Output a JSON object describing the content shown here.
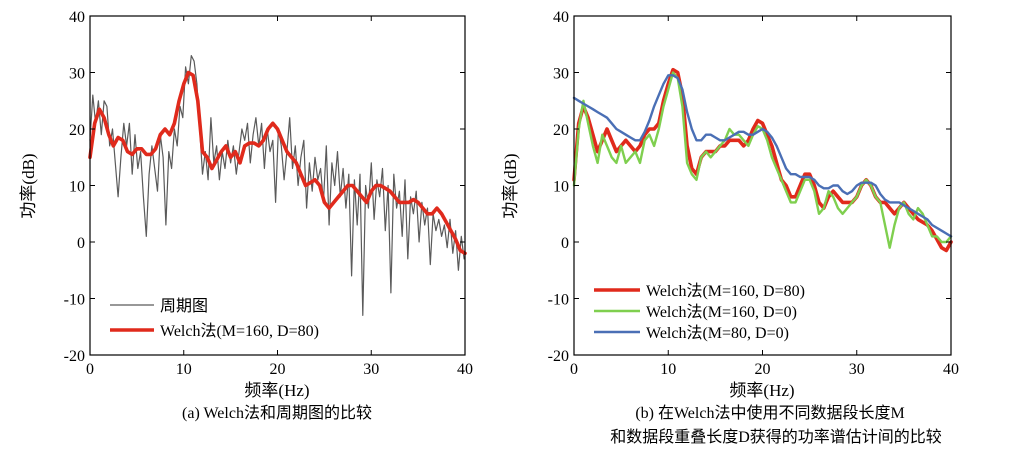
{
  "chart_data": [
    {
      "type": "line",
      "xlabel": "频率(Hz)",
      "ylabel": "功率(dB)",
      "xlim": [
        0,
        40
      ],
      "ylim": [
        -20,
        40
      ],
      "xticks": [
        0,
        10,
        20,
        30,
        40
      ],
      "yticks": [
        -20,
        -10,
        0,
        10,
        20,
        30,
        40
      ],
      "legend_position": "bottom-left",
      "caption": "(a) Welch法和周期图的比较",
      "series": [
        {
          "name": "周期图",
          "color": "#5a5a5a",
          "x": [
            0,
            0.3,
            0.6,
            0.9,
            1.2,
            1.5,
            1.8,
            2.1,
            2.4,
            2.7,
            3.0,
            3.3,
            3.6,
            3.9,
            4.2,
            4.5,
            4.8,
            5.1,
            5.4,
            5.7,
            6.0,
            6.3,
            6.6,
            6.9,
            7.2,
            7.5,
            7.8,
            8.1,
            8.4,
            8.7,
            9.0,
            9.3,
            9.6,
            9.9,
            10.2,
            10.5,
            10.8,
            11.1,
            11.4,
            11.7,
            12.0,
            12.3,
            12.6,
            12.9,
            13.2,
            13.5,
            13.8,
            14.1,
            14.4,
            14.7,
            15.0,
            15.3,
            15.6,
            15.9,
            16.2,
            16.5,
            16.8,
            17.1,
            17.4,
            17.7,
            18.0,
            18.3,
            18.6,
            18.9,
            19.2,
            19.5,
            19.8,
            20.1,
            20.4,
            20.7,
            21.0,
            21.3,
            21.6,
            21.9,
            22.2,
            22.5,
            22.8,
            23.1,
            23.4,
            23.7,
            24.0,
            24.3,
            24.6,
            24.9,
            25.2,
            25.5,
            25.8,
            26.1,
            26.4,
            26.7,
            27.0,
            27.3,
            27.6,
            27.9,
            28.2,
            28.5,
            28.8,
            29.1,
            29.4,
            29.7,
            30.0,
            30.3,
            30.6,
            30.9,
            31.2,
            31.5,
            31.8,
            32.1,
            32.4,
            32.7,
            33.0,
            33.3,
            33.6,
            33.9,
            34.2,
            34.5,
            34.8,
            35.1,
            35.4,
            35.7,
            36.0,
            36.3,
            36.6,
            36.9,
            37.2,
            37.5,
            37.8,
            38.1,
            38.4,
            38.7,
            39.0,
            39.3,
            39.6,
            39.9
          ],
          "y": [
            18,
            26,
            21,
            25,
            19,
            25,
            24,
            17,
            20,
            14,
            8,
            15,
            21,
            17,
            21,
            12,
            19,
            13,
            16,
            8,
            1,
            12,
            17,
            13,
            9,
            19,
            15,
            3,
            16,
            13,
            20,
            17,
            24,
            22,
            31,
            28,
            33,
            32,
            28,
            20,
            12,
            16,
            11,
            22,
            14,
            17,
            11,
            16,
            13,
            18,
            14,
            17,
            12,
            16,
            20,
            18,
            21,
            14,
            19,
            22,
            17,
            21,
            13,
            20,
            16,
            18,
            7,
            20,
            17,
            11,
            16,
            22,
            13,
            17,
            10,
            15,
            18,
            6,
            14,
            9,
            15,
            11,
            13,
            7,
            17,
            3,
            14,
            10,
            16,
            8,
            13,
            6,
            12,
            -6,
            11,
            3,
            12,
            -13,
            10,
            6,
            14,
            4,
            11,
            8,
            13,
            2,
            10,
            -9,
            12,
            6,
            9,
            1,
            11,
            -3,
            8,
            5,
            9,
            0,
            7,
            3,
            6,
            -4,
            5,
            2,
            4,
            1,
            3,
            -1,
            4,
            -2,
            2,
            -5,
            1,
            -3
          ]
        },
        {
          "name": "Welch法(M=160, D=80)",
          "color": "#e02a1c",
          "x": [
            0,
            0.5,
            1,
            1.5,
            2,
            2.5,
            3,
            3.5,
            4,
            4.5,
            5,
            5.5,
            6,
            6.5,
            7,
            7.5,
            8,
            8.5,
            9,
            9.5,
            10,
            10.5,
            11,
            11.5,
            12,
            12.5,
            13,
            13.5,
            14,
            14.5,
            15,
            15.5,
            16,
            16.5,
            17,
            17.5,
            18,
            18.5,
            19,
            19.5,
            20,
            20.5,
            21,
            21.5,
            22,
            22.5,
            23,
            23.5,
            24,
            24.5,
            25,
            25.5,
            26,
            26.5,
            27,
            27.5,
            28,
            28.5,
            29,
            29.5,
            30,
            30.5,
            31,
            31.5,
            32,
            32.5,
            33,
            33.5,
            34,
            34.5,
            35,
            35.5,
            36,
            36.5,
            37,
            37.5,
            38,
            38.5,
            39,
            39.5,
            40
          ],
          "y": [
            15,
            21,
            23.5,
            22,
            19,
            17,
            18.5,
            18,
            16,
            15.5,
            16.5,
            16.5,
            15.5,
            15.5,
            16.5,
            19,
            20,
            19,
            21,
            25,
            28,
            30,
            29.5,
            25,
            16,
            15,
            13,
            14.5,
            16,
            17,
            15,
            16,
            14,
            17,
            17.5,
            17.5,
            17,
            18,
            20,
            21,
            20,
            18,
            16,
            15,
            14,
            12,
            10,
            10.5,
            11,
            10,
            7,
            6,
            7,
            8,
            9,
            10,
            10,
            9,
            8,
            7,
            9,
            10,
            10,
            9.5,
            9,
            8,
            7,
            7,
            7,
            7.5,
            7,
            6,
            5,
            5,
            6,
            5,
            3.5,
            2,
            0.5,
            -1.5,
            -2
          ]
        }
      ]
    },
    {
      "type": "line",
      "xlabel": "频率(Hz)",
      "ylabel": "功率(dB)",
      "xlim": [
        0,
        40
      ],
      "ylim": [
        -20,
        40
      ],
      "xticks": [
        0,
        10,
        20,
        30,
        40
      ],
      "yticks": [
        -20,
        -10,
        0,
        10,
        20,
        30,
        40
      ],
      "legend_position": "bottom-left",
      "caption": [
        "(b) 在Welch法中使用不同数据段长度M",
        "和数据段重叠长度D获得的功率谱估计间的比较"
      ],
      "series": [
        {
          "name": "Welch法(M=160, D=80)",
          "color": "#e02a1c",
          "x": [
            0,
            0.5,
            1,
            1.5,
            2,
            2.5,
            3,
            3.5,
            4,
            4.5,
            5,
            5.5,
            6,
            6.5,
            7,
            7.5,
            8,
            8.5,
            9,
            9.5,
            10,
            10.5,
            11,
            11.5,
            12,
            12.5,
            13,
            13.5,
            14,
            14.5,
            15,
            15.5,
            16,
            16.5,
            17,
            17.5,
            18,
            18.5,
            19,
            19.5,
            20,
            20.5,
            21,
            21.5,
            22,
            22.5,
            23,
            23.5,
            24,
            24.5,
            25,
            25.5,
            26,
            26.5,
            27,
            27.5,
            28,
            28.5,
            29,
            29.5,
            30,
            30.5,
            31,
            31.5,
            32,
            32.5,
            33,
            33.5,
            34,
            34.5,
            35,
            35.5,
            36,
            36.5,
            37,
            37.5,
            38,
            38.5,
            39,
            39.5,
            40
          ],
          "y": [
            11,
            21,
            24,
            22,
            19,
            16,
            18,
            20,
            18,
            16,
            17,
            18,
            17,
            16,
            17,
            19,
            20,
            20,
            21,
            25,
            28,
            30.5,
            30,
            26,
            17,
            13,
            12,
            15,
            16,
            16,
            16,
            17,
            17,
            18,
            18,
            18,
            17,
            18,
            20,
            21.5,
            21,
            19,
            17,
            14,
            11,
            10,
            8,
            8,
            10,
            12,
            12,
            10,
            7,
            6,
            8,
            9,
            8,
            7,
            7,
            7,
            8,
            10,
            11,
            10,
            8,
            7,
            7,
            6,
            5,
            6,
            7,
            6,
            5,
            4,
            3.5,
            3,
            2,
            0.5,
            -1,
            -1.5,
            0
          ]
        },
        {
          "name": "Welch法(M=160, D=0)",
          "color": "#7fcf4f",
          "x": [
            0,
            0.5,
            1,
            1.5,
            2,
            2.5,
            3,
            3.5,
            4,
            4.5,
            5,
            5.5,
            6,
            6.5,
            7,
            7.5,
            8,
            8.5,
            9,
            9.5,
            10,
            10.5,
            11,
            11.5,
            12,
            12.5,
            13,
            13.5,
            14,
            14.5,
            15,
            15.5,
            16,
            16.5,
            17,
            17.5,
            18,
            18.5,
            19,
            19.5,
            20,
            20.5,
            21,
            21.5,
            22,
            22.5,
            23,
            23.5,
            24,
            24.5,
            25,
            25.5,
            26,
            26.5,
            27,
            27.5,
            28,
            28.5,
            29,
            29.5,
            30,
            30.5,
            31,
            31.5,
            32,
            32.5,
            33,
            33.5,
            34,
            34.5,
            35,
            35.5,
            36,
            36.5,
            37,
            37.5,
            38,
            38.5,
            39,
            39.5,
            40
          ],
          "y": [
            10,
            20,
            25,
            21,
            17,
            14,
            19,
            17,
            15,
            14,
            17,
            14,
            15,
            16,
            14,
            18,
            19,
            17,
            20,
            24,
            27,
            30,
            29,
            24,
            14,
            12,
            11,
            15,
            16,
            15,
            16,
            17,
            18,
            20,
            19,
            19,
            18,
            17,
            19,
            20.5,
            20,
            18,
            15,
            13,
            11,
            9,
            7,
            7,
            9,
            11,
            11,
            9,
            5,
            6,
            9,
            8,
            6,
            5,
            6,
            7,
            8,
            10,
            11,
            10,
            8,
            7,
            3,
            -1,
            3,
            6,
            7,
            5,
            4,
            6,
            5,
            3,
            1,
            1,
            0,
            0,
            1
          ]
        },
        {
          "name": "Welch法(M=80, D=0)",
          "color": "#4a6fb5",
          "x": [
            0,
            0.5,
            1,
            1.5,
            2,
            2.5,
            3,
            3.5,
            4,
            4.5,
            5,
            5.5,
            6,
            6.5,
            7,
            7.5,
            8,
            8.5,
            9,
            9.5,
            10,
            10.5,
            11,
            11.5,
            12,
            12.5,
            13,
            13.5,
            14,
            14.5,
            15,
            15.5,
            16,
            16.5,
            17,
            17.5,
            18,
            18.5,
            19,
            19.5,
            20,
            20.5,
            21,
            21.5,
            22,
            22.5,
            23,
            23.5,
            24,
            24.5,
            25,
            25.5,
            26,
            26.5,
            27,
            27.5,
            28,
            28.5,
            29,
            29.5,
            30,
            30.5,
            31,
            31.5,
            32,
            32.5,
            33,
            33.5,
            34,
            34.5,
            35,
            35.5,
            36,
            36.5,
            37,
            37.5,
            38,
            38.5,
            39,
            39.5,
            40
          ],
          "y": [
            25.5,
            25,
            24.5,
            24,
            23.5,
            23,
            22.5,
            22,
            21,
            20,
            19.5,
            19,
            18.5,
            18,
            18,
            19.5,
            21.5,
            24,
            26,
            28,
            29.5,
            29.5,
            29,
            27,
            23,
            20,
            18,
            18,
            19,
            19,
            18.5,
            18,
            18,
            18.5,
            19,
            19.5,
            19.5,
            19,
            19,
            19.5,
            20,
            19.5,
            18.5,
            17,
            15,
            13,
            12,
            12,
            11.5,
            11.5,
            11.5,
            11,
            10,
            9.5,
            9.5,
            10,
            10,
            9,
            8.5,
            9,
            10,
            10.5,
            10.5,
            10.5,
            10,
            8.5,
            7.5,
            7,
            7,
            7,
            6.5,
            6,
            5.5,
            5,
            4.5,
            4,
            3,
            2.5,
            2,
            1.5,
            1
          ]
        }
      ]
    }
  ]
}
